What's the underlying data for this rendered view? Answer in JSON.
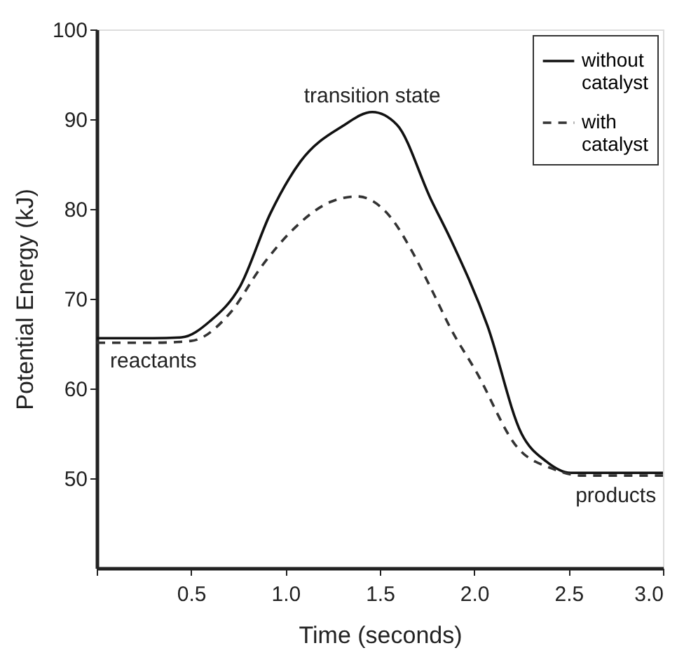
{
  "chart_data": {
    "type": "line",
    "xlabel": "Time (seconds)",
    "ylabel": "Potential Energy (kJ)",
    "xlim": [
      0,
      3.0
    ],
    "ylim": [
      40,
      100
    ],
    "xticks": [
      {
        "value": 0,
        "label": null
      },
      {
        "value": 0.5,
        "label": "0.5"
      },
      {
        "value": 1,
        "label": "1.0"
      },
      {
        "value": 1.5,
        "label": "1.5"
      },
      {
        "value": 2,
        "label": "2.0"
      },
      {
        "value": 2.5,
        "label": "2.5"
      },
      {
        "value": 3,
        "label": "3.0"
      }
    ],
    "yticks": [
      50,
      60,
      70,
      80,
      90,
      100
    ],
    "grid": false,
    "legend": "top right",
    "marker": "none",
    "series": [
      {
        "name": "without catalyst",
        "color": "#111111",
        "line_style": "solid",
        "x": [
          0,
          0.3,
          0.45,
          0.6,
          0.76,
          0.92,
          1.08,
          1.3,
          1.46,
          1.59,
          1.77,
          1.88,
          2.07,
          2.25,
          2.38,
          2.51,
          2.75,
          3.0
        ],
        "values": [
          65.6,
          65.6,
          65.7,
          67.5,
          71.4,
          79.5,
          85.3,
          89.2,
          90.8,
          89.4,
          81.1,
          76.4,
          67,
          55,
          51.9,
          50.6,
          50.6,
          50.6
        ]
      },
      {
        "name": "with catalyst",
        "color": "#333333",
        "line_style": "dashed",
        "x": [
          0,
          0.3,
          0.5,
          0.71,
          0.87,
          1.03,
          1.24,
          1.38,
          1.56,
          1.67,
          1.77,
          1.88,
          2.01,
          2.23,
          2.41,
          2.57,
          2.8,
          3.0
        ],
        "values": [
          65.1,
          65.1,
          65.3,
          68.5,
          73.5,
          77.5,
          80.8,
          81.4,
          79,
          75.3,
          71.2,
          66.5,
          61.9,
          53.4,
          51.1,
          50.3,
          50.3,
          50.3
        ]
      }
    ],
    "annotations": [
      {
        "text": "transition state",
        "x": 1.46,
        "y": 90.8
      },
      {
        "text": "reactants",
        "x": 0.3,
        "y": 65.6
      },
      {
        "text": "products",
        "x": 2.75,
        "y": 50.6
      }
    ]
  }
}
